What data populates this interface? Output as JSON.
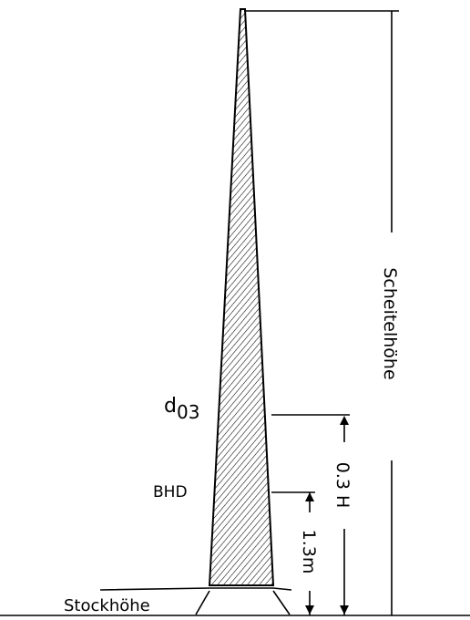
{
  "labels": {
    "crown_height": "Scheitelhöhe",
    "d03": "d",
    "d03_sub": "03",
    "bhd": "BHD",
    "h03": "0.3 H",
    "h13": "1.3m",
    "stump": "Stockhöhe"
  }
}
